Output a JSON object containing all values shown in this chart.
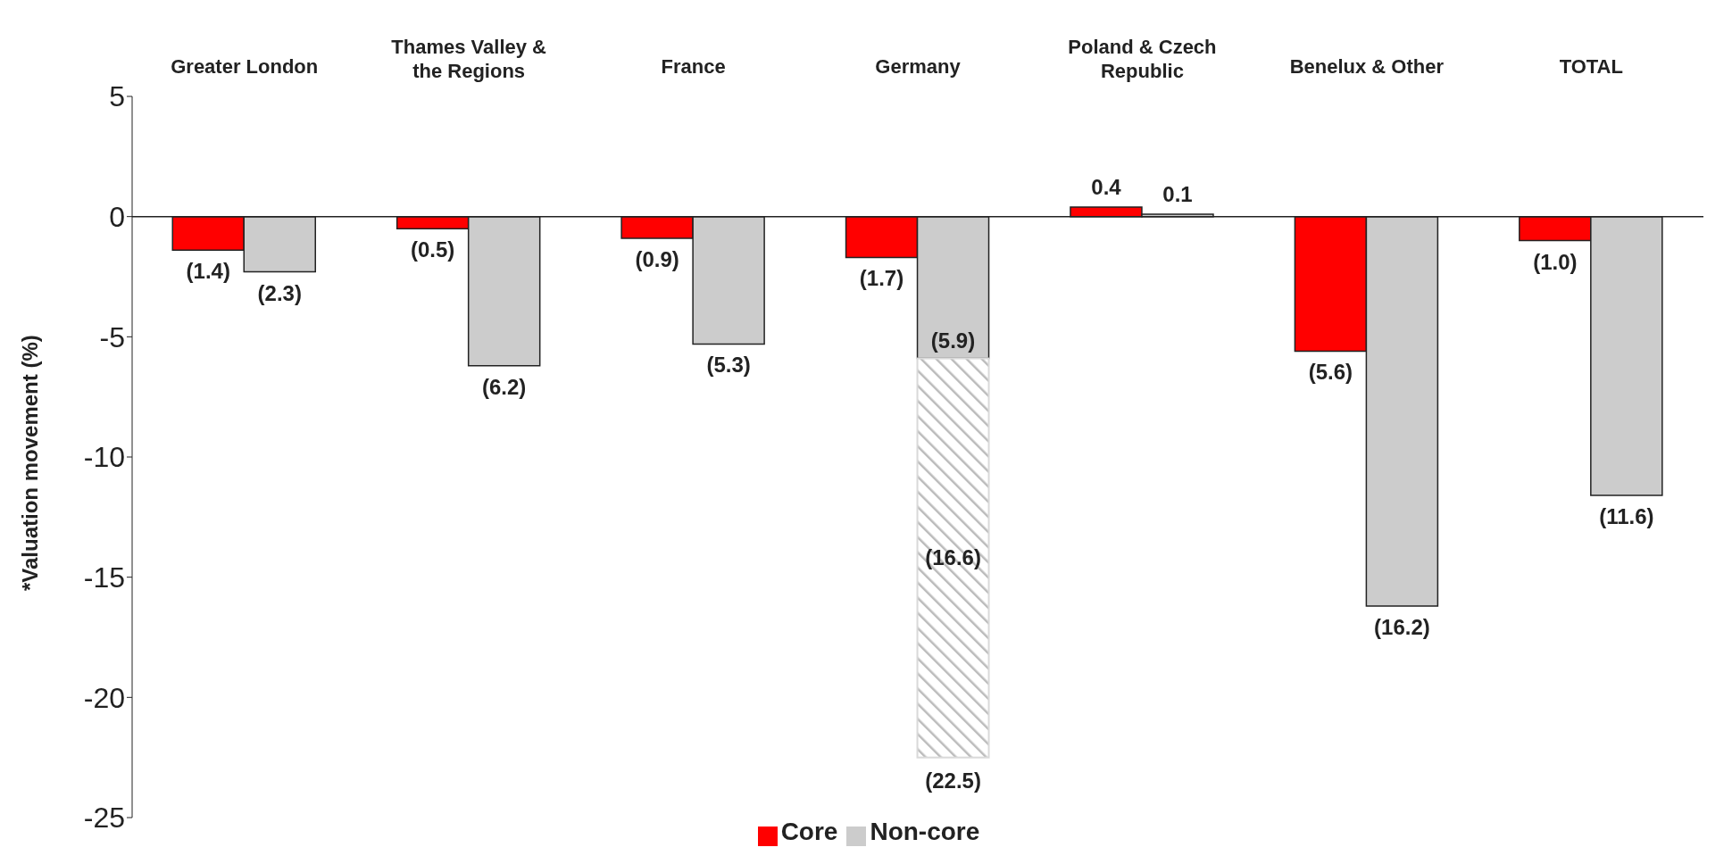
{
  "chart_data": {
    "type": "bar",
    "ylabel": "*Valuation movement (%)",
    "categories": [
      "Greater London",
      "Thames Valley & the Regions",
      "France",
      "Germany",
      "Poland & Czech Republic",
      "Benelux & Other",
      "TOTAL"
    ],
    "series": [
      {
        "name": "Core",
        "color": "#ff0000",
        "values": [
          -1.4,
          -0.5,
          -0.9,
          -1.7,
          0.4,
          -5.6,
          -1.0
        ],
        "value_labels": [
          "(1.4)",
          "(0.5)",
          "(0.9)",
          "(1.7)",
          "0.4",
          "(5.6)",
          "(1.0)"
        ]
      },
      {
        "name": "Non-core",
        "color": "#cccccc",
        "values": [
          -2.3,
          -6.2,
          -5.3,
          -5.9,
          0.1,
          -16.2,
          -11.6
        ],
        "value_labels": [
          "(2.3)",
          "(6.2)",
          "(5.3)",
          "(5.9)",
          "0.1",
          "(16.2)",
          "(11.6)"
        ]
      },
      {
        "color": "#d9d9d9",
        "base": [
          null,
          null,
          null,
          -5.9,
          null,
          null,
          null
        ],
        "values": [
          null,
          null,
          null,
          -16.6,
          null,
          null,
          null
        ],
        "value_labels": [
          null,
          null,
          null,
          "(16.6)",
          null,
          null,
          null
        ]
      }
    ],
    "annotations": [
      {
        "text": "(22.5)",
        "x": "Germany",
        "y": -22.5
      }
    ],
    "ref_lines": [
      {
        "axis": "y",
        "value": 0,
        "color": "#222222"
      }
    ],
    "ylim": [
      -25,
      5
    ],
    "yticks": [
      -25,
      -20,
      -15,
      -10,
      -5,
      0,
      5
    ],
    "legend": "bottom"
  }
}
